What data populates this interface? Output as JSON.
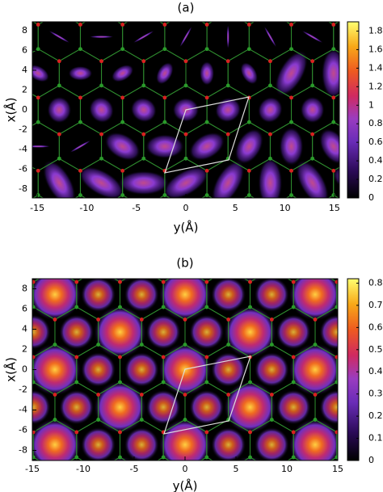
{
  "chart_data": [
    {
      "type": "heatmap",
      "title": "(a)",
      "xlabel": "y(Å)",
      "ylabel": "x(Å)",
      "xlim": [
        -15.5,
        15.5
      ],
      "xticks": [
        -15,
        -10,
        -5,
        0,
        5,
        10,
        15
      ],
      "ylim": [
        -8.9,
        8.9
      ],
      "yticks": [
        -8,
        -6,
        -4,
        -2,
        0,
        2,
        4,
        6,
        8
      ],
      "clim": [
        0,
        1.9
      ],
      "cticks": [
        0,
        0.2,
        0.4,
        0.6,
        0.8,
        1,
        1.2,
        1.4,
        1.6,
        1.8
      ]
    },
    {
      "type": "heatmap",
      "title": "(b)",
      "xlabel": "y(Å)",
      "ylabel": "x(Å)",
      "xlim": [
        -15,
        15
      ],
      "xticks": [
        -15,
        -10,
        -5,
        0,
        5,
        10,
        15
      ],
      "ylim": [
        -9,
        9
      ],
      "yticks": [
        -8,
        -6,
        -4,
        -2,
        0,
        2,
        4,
        6,
        8
      ],
      "clim": [
        0,
        0.82
      ],
      "cticks": [
        0,
        0.1,
        0.2,
        0.3,
        0.4,
        0.5,
        0.6,
        0.7,
        0.8
      ]
    }
  ]
}
